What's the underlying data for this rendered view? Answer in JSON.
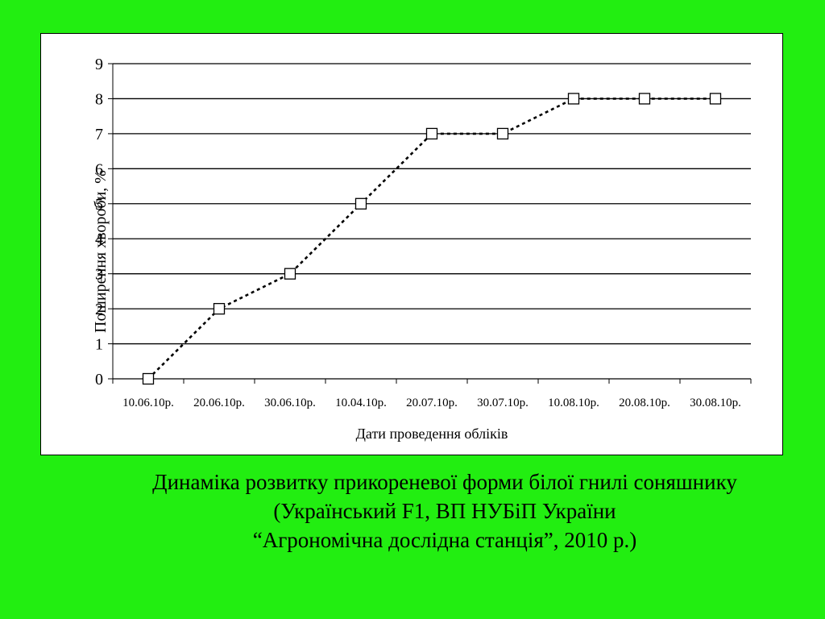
{
  "chart_data": {
    "type": "line",
    "title": "",
    "xlabel": "Дати проведення обліків",
    "ylabel": "Поширення хвороби, %",
    "categories": [
      "10.06.10р.",
      "20.06.10р.",
      "30.06.10р.",
      "10.04.10р.",
      "20.07.10р.",
      "30.07.10р.",
      "10.08.10р.",
      "20.08.10р.",
      "30.08.10р."
    ],
    "series": [
      {
        "values": [
          0,
          2,
          3,
          5,
          7,
          7,
          8,
          8,
          8
        ],
        "line_style": "dotted",
        "marker": "square-open"
      }
    ],
    "ylim": [
      0,
      9
    ],
    "yticks": [
      0,
      1,
      2,
      3,
      4,
      5,
      6,
      7,
      8,
      9
    ],
    "grid": true,
    "legend": "none"
  },
  "caption": {
    "line1": "Динаміка розвитку прикореневої форми білої гнилі соняшнику",
    "line2": "(Український F1, ВП НУБіП України",
    "line3": "“Агрономічна дослідна станція”, 2010 р.)"
  },
  "colors": {
    "background": "#22ee11",
    "plot": "#ffffff",
    "line": "#000000"
  }
}
